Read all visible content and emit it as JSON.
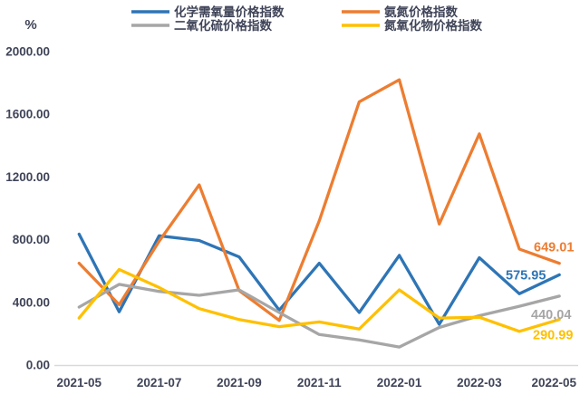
{
  "chart_data": {
    "type": "line",
    "title": "",
    "unit_label": "%",
    "xlabel": "",
    "ylabel": "%",
    "ylim": [
      0,
      2000
    ],
    "grid": false,
    "legend_position": "top",
    "categories": [
      "2021-05",
      "2021-06",
      "2021-07",
      "2021-08",
      "2021-09",
      "2021-10",
      "2021-11",
      "2021-12",
      "2022-01",
      "2022-02",
      "2022-03",
      "2022-04",
      "2022-05"
    ],
    "x_tick_labels": [
      "2021-05",
      "2021-07",
      "2021-09",
      "2021-11",
      "2022-01",
      "2022-03",
      "2022-05"
    ],
    "y_tick_labels": [
      "0.00",
      "400.00",
      "800.00",
      "1200.00",
      "1600.00",
      "2000.00"
    ],
    "series": [
      {
        "key": "cod",
        "name": "化学需氧量价格指数",
        "color": "#2E75B6",
        "values": [
          835,
          340,
          825,
          795,
          690,
          350,
          650,
          335,
          700,
          260,
          685,
          455,
          575.95
        ],
        "end_label": "575.95"
      },
      {
        "key": "ammonia-nitrogen",
        "name": "氨氮价格指数",
        "color": "#ED7D31",
        "values": [
          650,
          385,
          790,
          1150,
          475,
          285,
          920,
          1680,
          1820,
          900,
          1475,
          740,
          649.01
        ],
        "end_label": "649.01"
      },
      {
        "key": "so2",
        "name": "二氧化硫价格指数",
        "color": "#A6A6A6",
        "values": [
          370,
          515,
          470,
          445,
          480,
          335,
          195,
          160,
          115,
          240,
          315,
          375,
          440.04
        ],
        "end_label": "440,04"
      },
      {
        "key": "nox",
        "name": "氮氧化物价格指数",
        "color": "#FFC000",
        "values": [
          300,
          610,
          495,
          360,
          290,
          245,
          275,
          230,
          480,
          300,
          305,
          215,
          290.99
        ],
        "end_label": "290.99"
      }
    ],
    "colors": {
      "axis_line": "#d9d9d9",
      "label_text": "#3f4458"
    }
  }
}
